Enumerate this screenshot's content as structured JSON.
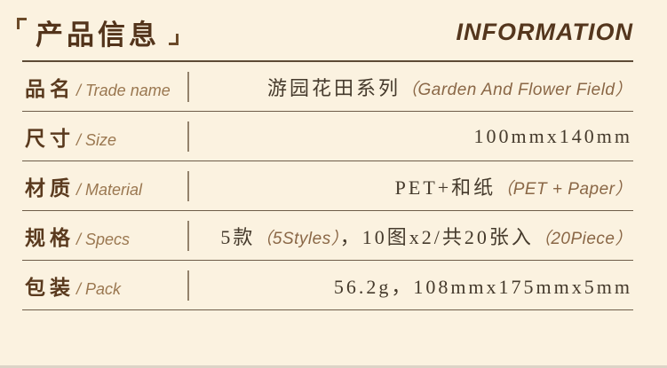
{
  "header": {
    "bracket_open": "「",
    "title": "产品信息",
    "bracket_close": "」",
    "title_en": "INFORMATION"
  },
  "rows": [
    {
      "label": "品名",
      "label_en": "/ Trade name",
      "parts": [
        {
          "t": "游园花田系列"
        },
        {
          "t": "（Garden And Flower Field）"
        }
      ]
    },
    {
      "label": "尺寸",
      "label_en": "/ Size",
      "parts": [
        {
          "t": "100mmx140mm"
        }
      ]
    },
    {
      "label": "材质",
      "label_en": "/ Material",
      "parts": [
        {
          "t": "PET+和纸"
        },
        {
          "t": "（PET + Paper）"
        }
      ]
    },
    {
      "label": "规格",
      "label_en": "/ Specs",
      "parts": [
        {
          "t": "5款"
        },
        {
          "t": "（5Styles）"
        },
        {
          "t": "，10图x2/共20张入"
        },
        {
          "t": "（20Piece）"
        }
      ]
    },
    {
      "label": "包装",
      "label_en": "/ Pack",
      "parts": [
        {
          "t": "56.2g，108mmx175mmx5mm"
        }
      ]
    }
  ],
  "colors": {
    "background": "#fbf2e0",
    "title_brown": "#53341b",
    "label_brown": "#5a3a1e",
    "light_brown": "#9a7750",
    "value_dark": "#453a2c",
    "line": "#6e5d49"
  }
}
